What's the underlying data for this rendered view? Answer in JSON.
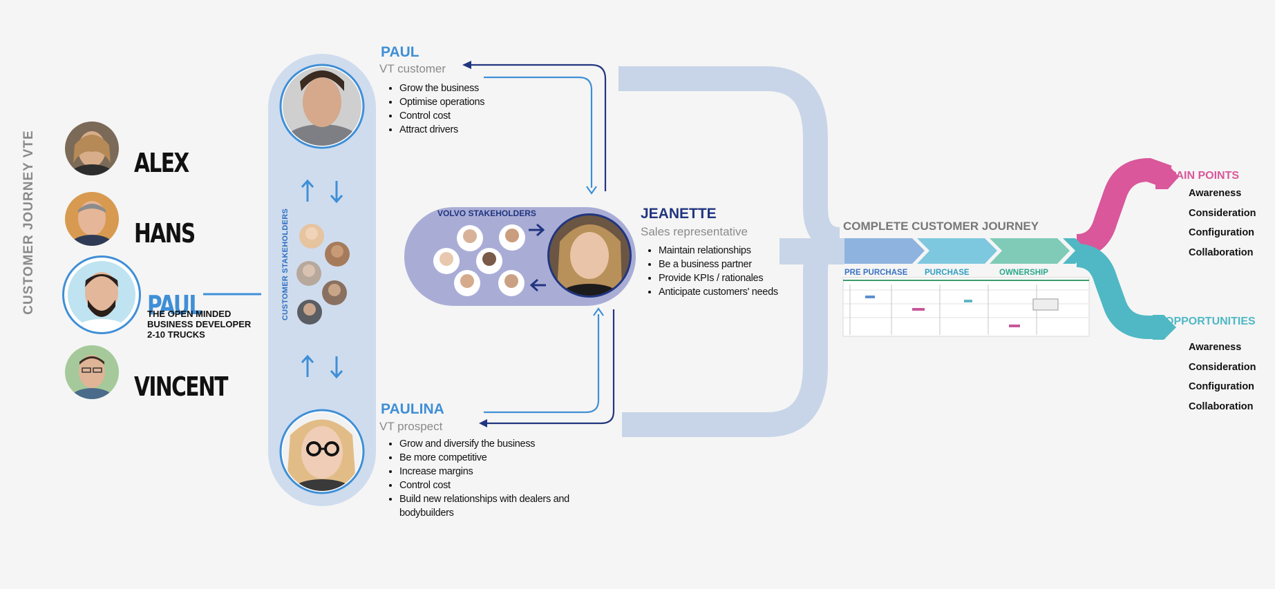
{
  "page_title": "CUSTOMER JOURNEY VTE",
  "personas": [
    {
      "name": "ALEX",
      "icon": "alex-avatar"
    },
    {
      "name": "HANS",
      "icon": "hans-avatar"
    },
    {
      "name": "PAUL",
      "icon": "paul-avatar"
    },
    {
      "name": "VINCENT",
      "icon": "vincent-avatar"
    }
  ],
  "selected_persona": {
    "name": "PAUL",
    "description": [
      "THE OPEN MINDED",
      "BUSINESS DEVELOPER",
      "2-10 TRUCKS"
    ]
  },
  "customer_stakeholders_label": "CUSTOMER STAKEHOLDERS",
  "volvo_stakeholders_label": "VOLVO STAKEHOLDERS",
  "stakeholders": {
    "paul": {
      "name": "PAUL",
      "role": "VT customer",
      "goals": [
        "Grow the business",
        "Optimise operations",
        "Control cost",
        "Attract drivers"
      ]
    },
    "paulina": {
      "name": "PAULINA",
      "role": "VT prospect",
      "goals": [
        "Grow and diversify the business",
        "Be more competitive",
        "Increase margins",
        "Control cost",
        "Build new relationships with dealers and bodybuilders"
      ]
    },
    "jeanette": {
      "name": "JEANETTE",
      "role": "Sales representative",
      "goals": [
        "Maintain relationships",
        "Be a business partner",
        "Provide KPIs / rationales",
        "Anticipate customers' needs"
      ]
    }
  },
  "journey": {
    "title": "COMPLETE CUSTOMER JOURNEY",
    "stages": [
      {
        "label": "PRE PURCHASE",
        "color": "#8eb3df",
        "text_color": "#3a72c4"
      },
      {
        "label": "PURCHASE",
        "color": "#7ec8df",
        "text_color": "#2e9ec1"
      },
      {
        "label": "OWNERSHIP",
        "color": "#7fcbb8",
        "text_color": "#2aa889"
      }
    ]
  },
  "pain_points": {
    "title": "PAIN POINTS",
    "color": "#d9579a",
    "items": [
      "Awareness",
      "Consideration",
      "Configuration",
      "Collaboration"
    ]
  },
  "opportunities": {
    "title": "OPPORTUNITIES",
    "color": "#4fb8c4",
    "items": [
      "Awareness",
      "Consideration",
      "Configuration",
      "Collaboration"
    ]
  },
  "colors": {
    "accent_blue": "#3f8fd6",
    "dark_navy": "#21357f",
    "light_pill": "#cfdcee",
    "volvo_pill": "#a9add6",
    "bracket": "#c8d5e8"
  }
}
